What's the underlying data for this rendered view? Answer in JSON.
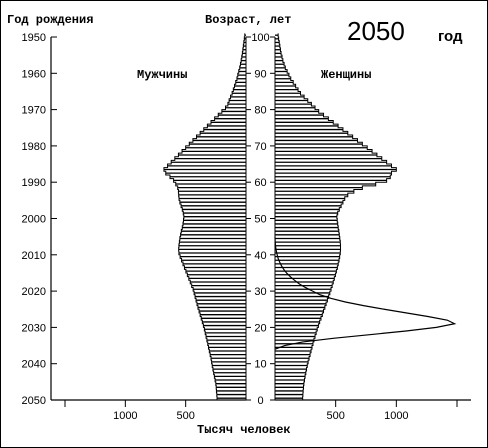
{
  "chart_data": {
    "type": "bar",
    "subtype": "population-pyramid",
    "year_title": "2050",
    "year_suffix": "год",
    "left_axis_title": "Год рождения",
    "center_axis_title": "Возраст, лет",
    "x_axis_title": "Тысяч человек",
    "left_label": "Мужчины",
    "right_label": "Женщины",
    "birth_year_ticks": [
      1950,
      1960,
      1970,
      1980,
      1990,
      2000,
      2010,
      2020,
      2030,
      2040,
      2050
    ],
    "age_ticks": [
      0,
      10,
      20,
      30,
      40,
      50,
      60,
      70,
      80,
      90,
      100
    ],
    "x_ticks_left": [
      1000,
      500
    ],
    "x_ticks_right": [
      500,
      1000
    ],
    "xlim": [
      0,
      1500
    ],
    "age_range": [
      0,
      100
    ],
    "grid": false,
    "ages": [
      0,
      1,
      2,
      3,
      4,
      5,
      6,
      7,
      8,
      9,
      10,
      11,
      12,
      13,
      14,
      15,
      16,
      17,
      18,
      19,
      20,
      21,
      22,
      23,
      24,
      25,
      26,
      27,
      28,
      29,
      30,
      31,
      32,
      33,
      34,
      35,
      36,
      37,
      38,
      39,
      40,
      41,
      42,
      43,
      44,
      45,
      46,
      47,
      48,
      49,
      50,
      51,
      52,
      53,
      54,
      55,
      56,
      57,
      58,
      59,
      60,
      61,
      62,
      63,
      64,
      65,
      66,
      67,
      68,
      69,
      70,
      71,
      72,
      73,
      74,
      75,
      76,
      77,
      78,
      79,
      80,
      81,
      82,
      83,
      84,
      85,
      86,
      87,
      88,
      89,
      90,
      91,
      92,
      93,
      94,
      95,
      96,
      97,
      98,
      99,
      100
    ],
    "series": [
      {
        "name": "Мужчины",
        "values": [
          240,
          242,
          245,
          247,
          250,
          256,
          262,
          268,
          274,
          280,
          285,
          290,
          297,
          304,
          311,
          317,
          324,
          331,
          338,
          345,
          353,
          362,
          371,
          380,
          389,
          398,
          406,
          414,
          422,
          430,
          438,
          450,
          462,
          474,
          486,
          498,
          510,
          522,
          534,
          546,
          556,
          558,
          556,
          552,
          548,
          542,
          536,
          528,
          522,
          518,
          515,
          520,
          528,
          538,
          548,
          555,
          558,
          560,
          566,
          582,
          600,
          630,
          665,
          680,
          650,
          620,
          590,
          560,
          530,
          500,
          470,
          440,
          410,
          380,
          350,
          320,
          290,
          260,
          230,
          200,
          170,
          150,
          140,
          128,
          115,
          105,
          95,
          85,
          75,
          68,
          60,
          52,
          46,
          40,
          35,
          30,
          26,
          22,
          18,
          14,
          10
        ]
      },
      {
        "name": "Женщины",
        "values": [
          228,
          230,
          232,
          235,
          238,
          243,
          248,
          254,
          260,
          266,
          273,
          281,
          289,
          297,
          305,
          313,
          321,
          330,
          339,
          348,
          358,
          368,
          379,
          390,
          400,
          411,
          421,
          432,
          442,
          452,
          462,
          471,
          480,
          489,
          498,
          506,
          514,
          521,
          528,
          533,
          538,
          540,
          540,
          538,
          534,
          530,
          526,
          521,
          517,
          513,
          510,
          517,
          530,
          545,
          560,
          575,
          600,
          650,
          720,
          830,
          920,
          950,
          960,
          1000,
          960,
          920,
          880,
          840,
          800,
          760,
          720,
          680,
          640,
          600,
          560,
          520,
          480,
          440,
          400,
          360,
          330,
          300,
          270,
          240,
          210,
          190,
          170,
          150,
          130,
          115,
          100,
          85,
          75,
          65,
          58,
          50,
          45,
          40,
          35,
          30,
          26
        ]
      }
    ],
    "overlay_line": {
      "series_side": "Женщины",
      "points": [
        [
          14,
          0
        ],
        [
          15,
          80
        ],
        [
          16,
          230
        ],
        [
          17,
          480
        ],
        [
          18,
          780
        ],
        [
          19,
          1080
        ],
        [
          20,
          1330
        ],
        [
          21,
          1480
        ],
        [
          22,
          1420
        ],
        [
          23,
          1260
        ],
        [
          24,
          1080
        ],
        [
          25,
          900
        ],
        [
          26,
          730
        ],
        [
          27,
          580
        ],
        [
          28,
          460
        ],
        [
          29,
          370
        ],
        [
          30,
          310
        ],
        [
          31,
          250
        ],
        [
          32,
          200
        ],
        [
          33,
          160
        ],
        [
          34,
          125
        ],
        [
          35,
          95
        ],
        [
          36,
          72
        ],
        [
          37,
          53
        ],
        [
          38,
          38
        ],
        [
          39,
          26
        ],
        [
          40,
          18
        ],
        [
          41,
          11
        ],
        [
          42,
          6
        ],
        [
          43,
          3
        ],
        [
          44,
          1
        ],
        [
          45,
          0
        ]
      ]
    }
  }
}
